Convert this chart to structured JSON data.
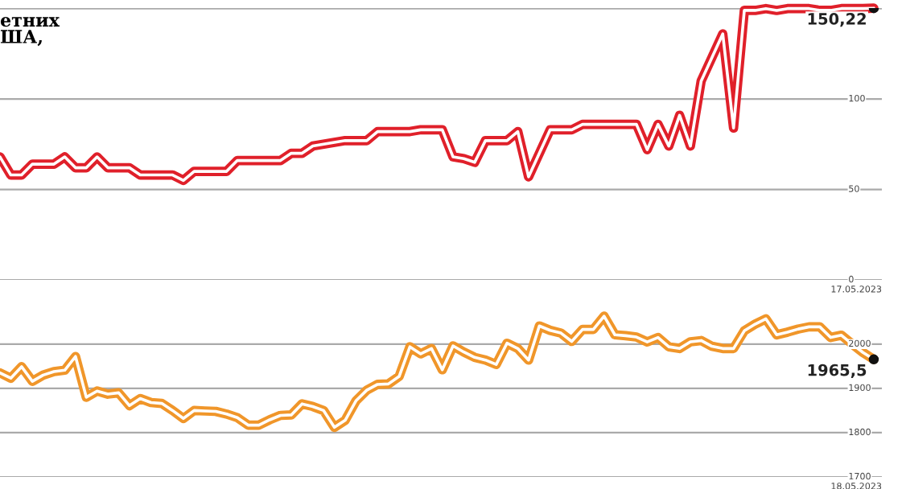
{
  "chart_data": [
    {
      "type": "line",
      "title": "етних\nША,",
      "categories": [
        null,
        null,
        null,
        null,
        null,
        null,
        null,
        null,
        null,
        null,
        null,
        null,
        null,
        null,
        null,
        null,
        null,
        null,
        null,
        null,
        null,
        null,
        null,
        null,
        null,
        null,
        null,
        null,
        null,
        null,
        null,
        null,
        null,
        null,
        null,
        null,
        null,
        null,
        null,
        null,
        null,
        null,
        null,
        null,
        null,
        null,
        null,
        null,
        null,
        null,
        null,
        null,
        null,
        null,
        null,
        null,
        null,
        null,
        null,
        null,
        null,
        null,
        null,
        null,
        null,
        null,
        null,
        null,
        null,
        null,
        null,
        null,
        null,
        null,
        null,
        null,
        null,
        null,
        null,
        null,
        null,
        null
      ],
      "series": [
        {
          "color": "#e0202a",
          "values": [
            68,
            58,
            58,
            64,
            64,
            64,
            68,
            62,
            62,
            68,
            62,
            62,
            62,
            58,
            58,
            58,
            58,
            55,
            60,
            60,
            60,
            60,
            66,
            66,
            66,
            66,
            66,
            70,
            70,
            74,
            75,
            76,
            77,
            77,
            77,
            82,
            82,
            82,
            82,
            83,
            83,
            83,
            68,
            67,
            65,
            77,
            77,
            77,
            82,
            57,
            70,
            83,
            83,
            83,
            86,
            86,
            86,
            86,
            86,
            86,
            72,
            86,
            74,
            91,
            74,
            110,
            123,
            136,
            84,
            149,
            149,
            150,
            149,
            150,
            150,
            150,
            149,
            149,
            150,
            150,
            150,
            150.22
          ],
          "value_labels": [
            null,
            null,
            null,
            null,
            null,
            null,
            null,
            null,
            null,
            null,
            null,
            null,
            null,
            null,
            null,
            null,
            null,
            null,
            null,
            null,
            null,
            null,
            null,
            null,
            null,
            null,
            null,
            null,
            null,
            null,
            null,
            null,
            null,
            null,
            null,
            null,
            null,
            null,
            null,
            null,
            null,
            null,
            null,
            null,
            null,
            null,
            null,
            null,
            null,
            null,
            null,
            null,
            null,
            null,
            null,
            null,
            null,
            null,
            null,
            null,
            null,
            null,
            null,
            null,
            null,
            null,
            null,
            null,
            null,
            null,
            null,
            null,
            null,
            null,
            null,
            null,
            null,
            null,
            null,
            null,
            null,
            "150,22"
          ]
        }
      ],
      "annotations": [
        "17.05.2023"
      ],
      "ylim": [
        0,
        150.3
      ],
      "yticks": [
        0,
        50,
        100,
        {
          "value": 150,
          "label": null
        }
      ],
      "grid": "y"
    },
    {
      "type": "line",
      "categories": [
        null,
        null,
        null,
        null,
        null,
        null,
        null,
        null,
        null,
        null,
        null,
        null,
        null,
        null,
        null,
        null,
        null,
        null,
        null,
        null,
        null,
        null,
        null,
        null,
        null,
        null,
        null,
        null,
        null,
        null,
        null,
        null,
        null,
        null,
        null,
        null,
        null,
        null,
        null,
        null,
        null,
        null,
        null,
        null,
        null,
        null,
        null,
        null,
        null,
        null,
        null,
        null,
        null,
        null,
        null,
        null,
        null,
        null,
        null,
        null,
        null,
        null,
        null,
        null,
        null,
        null,
        null,
        null,
        null,
        null,
        null,
        null,
        null,
        null,
        null,
        null,
        null,
        null,
        null,
        null,
        null,
        null
      ],
      "series": [
        {
          "color": "#f0962a",
          "values": [
            1935,
            1923,
            1949,
            1916,
            1930,
            1938,
            1941,
            1972,
            1880,
            1894,
            1887,
            1890,
            1861,
            1877,
            1868,
            1866,
            1850,
            1832,
            1850,
            1849,
            1848,
            1842,
            1834,
            1817,
            1817,
            1829,
            1839,
            1840,
            1865,
            1859,
            1850,
            1812,
            1828,
            1872,
            1896,
            1909,
            1910,
            1927,
            1994,
            1978,
            1990,
            1942,
            1996,
            1982,
            1970,
            1964,
            1954,
            2002,
            1990,
            1964,
            2041,
            2031,
            2025,
            2006,
            2033,
            2033,
            2063,
            2021,
            2019,
            2016,
            2005,
            2015,
            1994,
            1990,
            2005,
            2008,
            1995,
            1990,
            1990,
            2030,
            2045,
            2057,
            2021,
            2027,
            2034,
            2039,
            2039,
            2015,
            2020,
            2000,
            1981,
            1965.5
          ],
          "value_labels": [
            null,
            null,
            null,
            null,
            null,
            null,
            null,
            null,
            null,
            null,
            null,
            null,
            null,
            null,
            null,
            null,
            null,
            null,
            null,
            null,
            null,
            null,
            null,
            null,
            null,
            null,
            null,
            null,
            null,
            null,
            null,
            null,
            null,
            null,
            null,
            null,
            null,
            null,
            null,
            null,
            null,
            null,
            null,
            null,
            null,
            null,
            null,
            null,
            null,
            null,
            null,
            null,
            null,
            null,
            null,
            null,
            null,
            null,
            null,
            null,
            null,
            null,
            null,
            null,
            null,
            null,
            null,
            null,
            null,
            null,
            null,
            null,
            null,
            null,
            null,
            null,
            null,
            null,
            null,
            null,
            null,
            "1965,5"
          ]
        }
      ],
      "annotations": [
        "18.05.2023"
      ],
      "ylim": [
        1700,
        2145
      ],
      "yticks": [
        1700,
        1800,
        1900,
        2000
      ],
      "grid": "y"
    }
  ]
}
